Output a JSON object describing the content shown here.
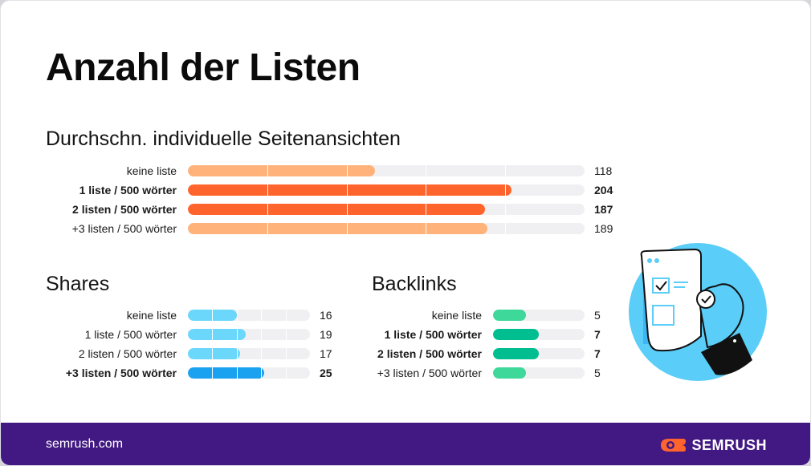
{
  "title": "Anzahl der Listen",
  "colors": {
    "pageviews_light": "#FFB27A",
    "pageviews_dark": "#FF642D",
    "shares_light": "#6BD8FB",
    "shares_dark": "#1AA2F0",
    "backlinks_light": "#3ED89B",
    "backlinks_dark": "#00BE8F",
    "footer_bg": "#421983",
    "brand_orange": "#FF642D"
  },
  "footer": {
    "url": "semrush.com",
    "brand": "SEMRUSH"
  },
  "chart_data": [
    {
      "type": "bar",
      "title": "Durchschn. individuelle Seitenansichten",
      "categories": [
        "keine liste",
        "1 liste / 500 wörter",
        "2 listen / 500 wörter",
        "+3 listen / 500 wörter"
      ],
      "values": [
        118,
        204,
        187,
        189
      ],
      "value_labels": [
        "118",
        "204",
        "187",
        "189"
      ],
      "highlight": [
        false,
        true,
        true,
        false
      ],
      "xlim": [
        0,
        250
      ],
      "grid": true
    },
    {
      "type": "bar",
      "title": "Shares",
      "categories": [
        "keine liste",
        "1 liste / 500 wörter",
        "2 listen / 500 wörter",
        "+3 listen / 500 wörter"
      ],
      "values": [
        16,
        19,
        17,
        25
      ],
      "value_labels": [
        "16",
        "19",
        "17",
        "25"
      ],
      "highlight": [
        false,
        false,
        false,
        true
      ],
      "xlim": [
        0,
        40
      ],
      "grid": true
    },
    {
      "type": "bar",
      "title": "Backlinks",
      "categories": [
        "keine liste",
        "1 liste / 500 wörter",
        "2 listen / 500 wörter",
        "+3 listen / 500 wörter"
      ],
      "values": [
        5,
        7,
        7,
        5
      ],
      "value_labels": [
        "5",
        "7",
        "7",
        "5"
      ],
      "highlight": [
        false,
        true,
        true,
        false
      ],
      "xlim": [
        0,
        14
      ],
      "grid": false
    }
  ]
}
